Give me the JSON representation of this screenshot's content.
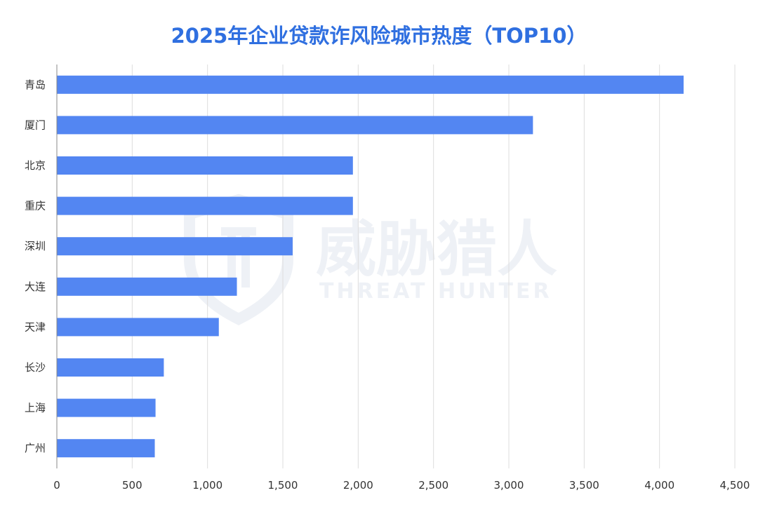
{
  "chart_data": {
    "type": "bar",
    "orientation": "horizontal",
    "title": "2025年企业贷款诈风险城市热度（TOP10）",
    "categories": [
      "青岛",
      "厦门",
      "北京",
      "重庆",
      "深圳",
      "大连",
      "天津",
      "长沙",
      "上海",
      "广州"
    ],
    "values": [
      4160,
      3160,
      1965,
      1965,
      1565,
      1195,
      1075,
      710,
      655,
      650
    ],
    "xlim": [
      0,
      4500
    ],
    "xticks": [
      0,
      500,
      1000,
      1500,
      2000,
      2500,
      3000,
      3500,
      4000,
      4500
    ],
    "xtick_labels": [
      "0",
      "500",
      "1,000",
      "1,500",
      "2,000",
      "2,500",
      "3,000",
      "3,500",
      "4,000",
      "4,500"
    ],
    "grid": "vertical",
    "bar_color": "#5386f2",
    "title_color": "#2f6fe0"
  },
  "watermark": {
    "text_cn": "威胁猎人",
    "text_en": "THREAT HUNTER"
  }
}
